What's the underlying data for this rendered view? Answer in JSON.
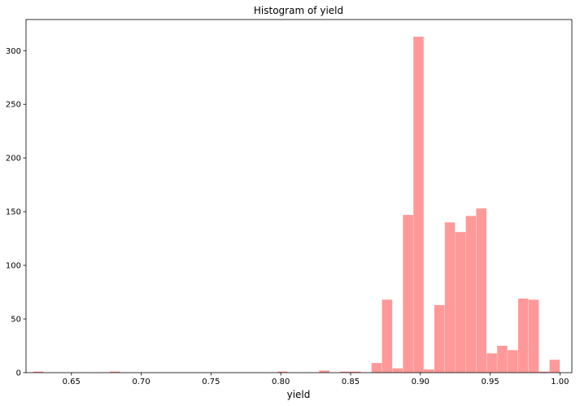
{
  "chart_data": {
    "type": "bar",
    "title": "Histogram of yield",
    "xlabel": "yield",
    "ylabel": "",
    "bar_color": "#ff9999",
    "xlim": [
      0.6175,
      1.0085
    ],
    "ylim": [
      0,
      329
    ],
    "bin_width": 0.0075,
    "x_ticks": [
      0.65,
      0.7,
      0.75,
      0.8,
      0.85,
      0.9,
      0.95,
      1.0
    ],
    "x_tick_labels": [
      "0.65",
      "0.70",
      "0.75",
      "0.80",
      "0.85",
      "0.90",
      "0.95",
      "1.00"
    ],
    "y_ticks": [
      0,
      50,
      100,
      150,
      200,
      250,
      300
    ],
    "y_tick_labels": [
      "0",
      "50",
      "100",
      "150",
      "200",
      "250",
      "300"
    ],
    "bins": [
      {
        "x": 0.6225,
        "count": 1
      },
      {
        "x": 0.6775,
        "count": 1
      },
      {
        "x": 0.7975,
        "count": 1
      },
      {
        "x": 0.8275,
        "count": 2
      },
      {
        "x": 0.8425,
        "count": 1
      },
      {
        "x": 0.85,
        "count": 1
      },
      {
        "x": 0.865,
        "count": 9
      },
      {
        "x": 0.8725,
        "count": 68
      },
      {
        "x": 0.88,
        "count": 4
      },
      {
        "x": 0.8875,
        "count": 147
      },
      {
        "x": 0.895,
        "count": 313
      },
      {
        "x": 0.9025,
        "count": 3
      },
      {
        "x": 0.91,
        "count": 63
      },
      {
        "x": 0.9175,
        "count": 140
      },
      {
        "x": 0.925,
        "count": 131
      },
      {
        "x": 0.9325,
        "count": 146
      },
      {
        "x": 0.94,
        "count": 153
      },
      {
        "x": 0.9475,
        "count": 18
      },
      {
        "x": 0.955,
        "count": 25
      },
      {
        "x": 0.9625,
        "count": 21
      },
      {
        "x": 0.97,
        "count": 69
      },
      {
        "x": 0.9775,
        "count": 68
      },
      {
        "x": 0.985,
        "count": 1
      },
      {
        "x": 0.9925,
        "count": 12
      }
    ]
  }
}
